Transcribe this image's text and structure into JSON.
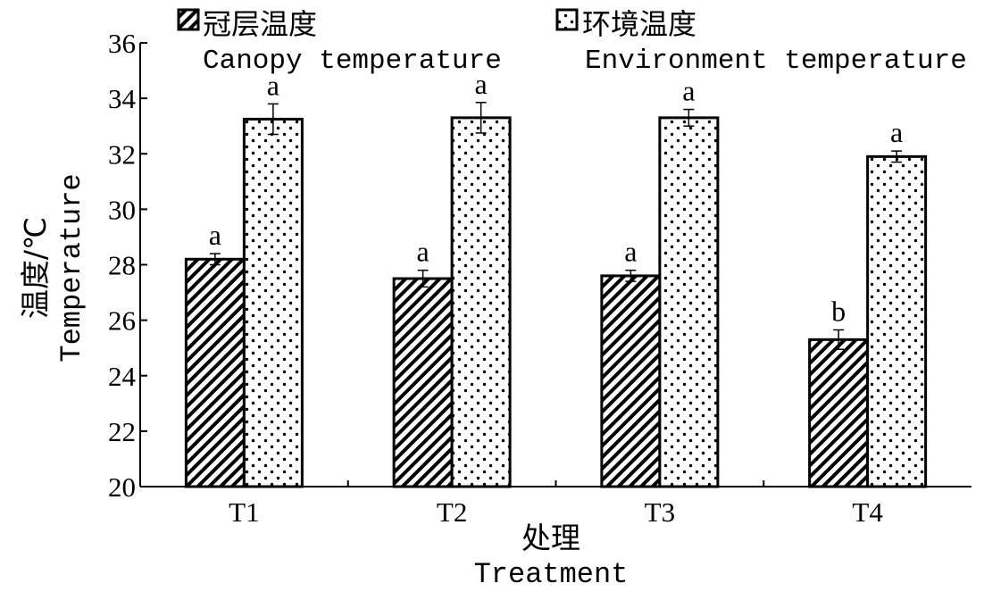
{
  "chart_data": {
    "type": "bar",
    "categories": [
      "T1",
      "T2",
      "T3",
      "T4"
    ],
    "series": [
      {
        "name_cn": "冠层温度",
        "name_en": "Canopy temperature",
        "pattern": "diagonal-hatch",
        "values": [
          28.2,
          27.5,
          27.6,
          25.3
        ],
        "errors": [
          0.2,
          0.3,
          0.2,
          0.35
        ],
        "significance": [
          "a",
          "a",
          "a",
          "b"
        ]
      },
      {
        "name_cn": "环境温度",
        "name_en": "Environment temperature",
        "pattern": "dots",
        "values": [
          33.25,
          33.3,
          33.3,
          31.9
        ],
        "errors": [
          0.55,
          0.55,
          0.3,
          0.2
        ],
        "significance": [
          "a",
          "a",
          "a",
          "a"
        ]
      }
    ],
    "ylim": [
      20,
      36
    ],
    "yticks": [
      "20",
      "22",
      "24",
      "26",
      "28",
      "30",
      "32",
      "34",
      "36"
    ],
    "xlabel_cn": "处理",
    "xlabel_en": "Treatment",
    "ylabel_cn": "温度/℃",
    "ylabel_en": "Temperature",
    "legend_position": "top",
    "grid": false
  }
}
